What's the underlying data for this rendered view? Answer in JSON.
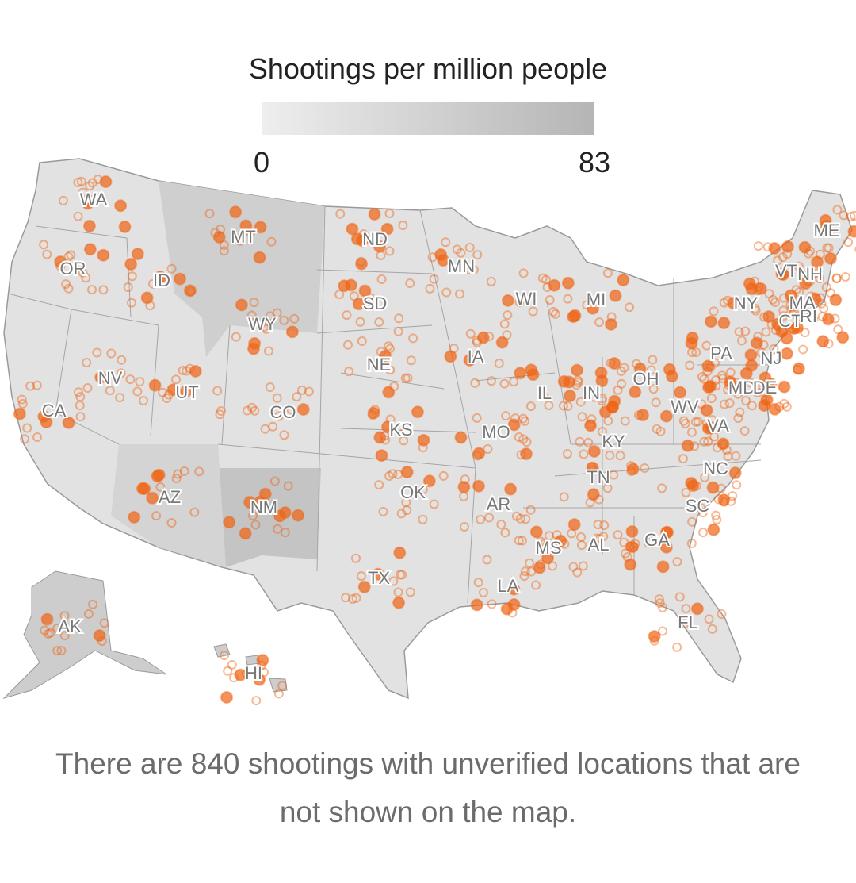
{
  "legend": {
    "title": "Shootings per million people",
    "min": "0",
    "max": "83"
  },
  "states": [
    "WA",
    "OR",
    "CA",
    "ID",
    "NV",
    "MT",
    "WY",
    "UT",
    "AZ",
    "CO",
    "NM",
    "ND",
    "SD",
    "NE",
    "KS",
    "OK",
    "TX",
    "MN",
    "IA",
    "MO",
    "AR",
    "LA",
    "WI",
    "IL",
    "MI",
    "IN",
    "OH",
    "KY",
    "TN",
    "MS",
    "AL",
    "GA",
    "FL",
    "SC",
    "NC",
    "VA",
    "WV",
    "PA",
    "NY",
    "MD",
    "DE",
    "NJ",
    "CT",
    "RI",
    "MA",
    "VT",
    "NH",
    "ME",
    "AK",
    "HI"
  ],
  "note": "There are 840 shootings with unverified locations that are not shown on the map."
}
